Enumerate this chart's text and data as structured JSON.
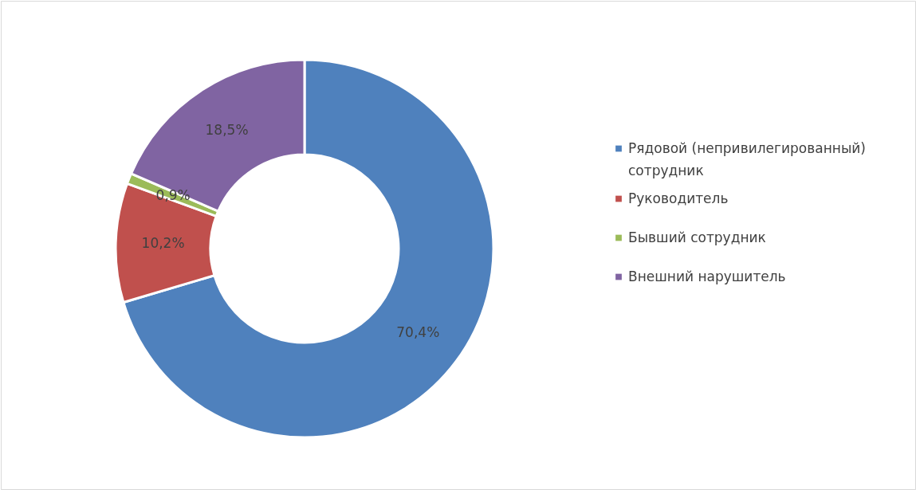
{
  "chart_data": {
    "type": "donut",
    "categories": [
      "Рядовой (непривилегированный) сотрудник",
      "Руководитель",
      "Бывший сотрудник",
      "Внешний нарушитель"
    ],
    "values": [
      70.4,
      10.2,
      0.9,
      18.5
    ],
    "colors": [
      "#4f81bd",
      "#c0504d",
      "#9bbb59",
      "#8064a2"
    ],
    "value_labels": [
      "70,4%",
      "10,2%",
      "0,9%",
      "18,5%"
    ],
    "legend": "right"
  }
}
